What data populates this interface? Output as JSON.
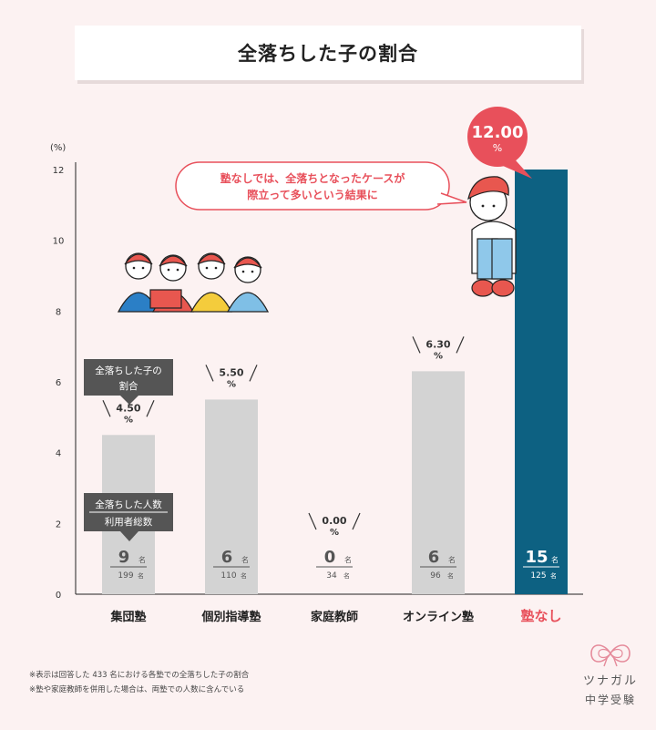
{
  "title": "全落ちした子の割合",
  "chart_data": {
    "type": "bar",
    "title": "全落ちした子の割合",
    "ylabel": "(%)",
    "ylim": [
      0,
      12
    ],
    "yticks": [
      0,
      2,
      4,
      6,
      8,
      10,
      12
    ],
    "grid": false,
    "categories": [
      "集団塾",
      "個別指導塾",
      "家庭教師",
      "オンライン塾",
      "塾なし"
    ],
    "values": [
      4.5,
      5.5,
      0.0,
      6.3,
      12.0
    ],
    "value_labels": [
      "4.50",
      "5.50",
      "0.00",
      "6.30",
      "12.00"
    ],
    "value_unit": "%",
    "counts_failed": [
      "9",
      "6",
      "0",
      "6",
      "15"
    ],
    "counts_total": [
      "199",
      "110",
      "34",
      "96",
      "125"
    ],
    "count_unit": "名",
    "highlight_index": 4,
    "colors": {
      "bar": "#d3d3d3",
      "highlight": "#0d6182",
      "accent": "#e8505b",
      "axis": "#222222"
    }
  },
  "legend": {
    "ratio_line1": "全落ちした子の",
    "ratio_line2": "割合",
    "count_top": "全落ちした人数",
    "count_bottom": "利用者総数"
  },
  "callout": {
    "line1": "塾なしでは、全落ちとなったケースが",
    "line2": "際立って多いという結果に"
  },
  "notes": [
    "※表示は回答した 433 名における各塾での全落ちした子の割合",
    "※塾や家庭教師を併用した場合は、両塾での人数に含んでいる"
  ],
  "logo": {
    "line1": "ツナガル",
    "line2": "中学受験"
  }
}
